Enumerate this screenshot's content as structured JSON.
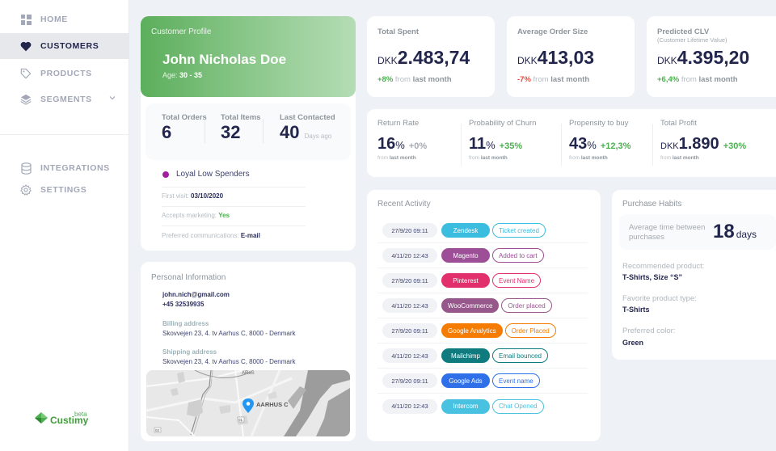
{
  "sidebar": {
    "items": [
      {
        "label": "HOME",
        "icon": "dashboard-icon"
      },
      {
        "label": "CUSTOMERS",
        "icon": "heart-icon",
        "active": true
      },
      {
        "label": "PRODUCTS",
        "icon": "tag-icon"
      },
      {
        "label": "SEGMENTS",
        "icon": "layers-icon"
      }
    ],
    "bottom_items": [
      {
        "label": "INTEGRATIONS",
        "icon": "database-icon"
      },
      {
        "label": "SETTINGS",
        "icon": "gear-icon"
      }
    ],
    "logo": {
      "name": "Custimy",
      "badge": "beta"
    }
  },
  "profile": {
    "title": "Customer Profile",
    "name": "John Nicholas Doe",
    "age_label": "Age:",
    "age_value": "30 - 35",
    "stats": [
      {
        "label": "Total Orders",
        "value": "6",
        "suffix": ""
      },
      {
        "label": "Total Items",
        "value": "32",
        "suffix": ""
      },
      {
        "label": "Last Contacted",
        "value": "40",
        "suffix": "Days ago"
      }
    ],
    "segment": {
      "label": "Loyal Low Spenders",
      "color": "#a020a0"
    },
    "first_visit_label": "First visit:",
    "first_visit": "03/10/2020",
    "marketing_label": "Accepts marketing:",
    "marketing": "Yes",
    "comm_label": "Preferred communications:",
    "comm": "E-mail"
  },
  "personal": {
    "title": "Personal Information",
    "email": "john.nich@gmail.com",
    "phone": "+45 32539935",
    "billing_label": "Billing address",
    "billing": "Skovvejen 23, 4. tv Aarhus C, 8000 - Denmark",
    "shipping_label": "Shipping address",
    "shipping": "Skovvejen 23, 4. tv Aarhus C, 8000 - Denmark",
    "map": {
      "place_label": "AARHUS C",
      "poi_label": "ARoS",
      "road_labels": [
        "01",
        "02"
      ]
    }
  },
  "kpis": [
    {
      "title": "Total Spent",
      "subtitle": "",
      "currency": "DKK",
      "value": "2.483,74",
      "delta": "+8%",
      "trend": "pos",
      "from": "from",
      "period": "last month"
    },
    {
      "title": "Average Order Size",
      "subtitle": "",
      "currency": "DKK",
      "value": "413,03",
      "delta": "-7%",
      "trend": "neg",
      "from": "from",
      "period": "last month"
    },
    {
      "title": "Predicted CLV",
      "subtitle": "(Customer Lifetime Value)",
      "currency": "DKK",
      "value": "4.395,20",
      "delta": "+6,4%",
      "trend": "pos",
      "from": "from",
      "period": "last month"
    }
  ],
  "metrics": [
    {
      "title": "Return Rate",
      "value": "16",
      "unit": "%",
      "currency": "",
      "change": "+0%",
      "from": "from",
      "period": "last month"
    },
    {
      "title": "Probability of Churn",
      "value": "11",
      "unit": "%",
      "currency": "",
      "change": "+35%",
      "from": "from",
      "period": "last month"
    },
    {
      "title": "Propensity to buy",
      "value": "43",
      "unit": "%",
      "currency": "",
      "change": "+12,3%",
      "from": "from",
      "period": "last month"
    },
    {
      "title": "Total Profit",
      "value": "1.890",
      "unit": "",
      "currency": "DKK",
      "change": "+30%",
      "from": "from",
      "period": "last month"
    }
  ],
  "activity": {
    "title": "Recent Activity",
    "rows": [
      {
        "date": "27/9/20 09:11",
        "source": "Zendesk",
        "event": "Ticket created",
        "color": "#3bbde0"
      },
      {
        "date": "4/11/20 12:43",
        "source": "Magento",
        "event": "Added to cart",
        "color": "#9c4f96"
      },
      {
        "date": "27/9/20 09:11",
        "source": "Pinterest",
        "event": "Event Name",
        "color": "#e2306c"
      },
      {
        "date": "4/11/20 12:43",
        "source": "WooCommerce",
        "event": "Order placed",
        "color": "#96588a"
      },
      {
        "date": "27/9/20 09:11",
        "source": "Google Analytics",
        "event": "Order Placed",
        "color": "#f57c00"
      },
      {
        "date": "4/11/20 12:43",
        "source": "Mailchimp",
        "event": "Email bounced",
        "color": "#0f7b7f"
      },
      {
        "date": "27/9/20 09:11",
        "source": "Google Ads",
        "event": "Event name",
        "color": "#2f6fe8"
      },
      {
        "date": "4/11/20 12:43",
        "source": "Intercom",
        "event": "Chat Opened",
        "color": "#48c2e0"
      }
    ]
  },
  "habits": {
    "title": "Purchase Habits",
    "avg_label": "Average time between purchases",
    "avg_value": "18",
    "avg_unit": "days",
    "recommended_label": "Recommended product:",
    "recommended": "T-Shirts, Size “S”",
    "favorite_label": "Favorite product type:",
    "favorite": "T-Shirts",
    "color_label": "Preferred color:",
    "color": "Green"
  }
}
